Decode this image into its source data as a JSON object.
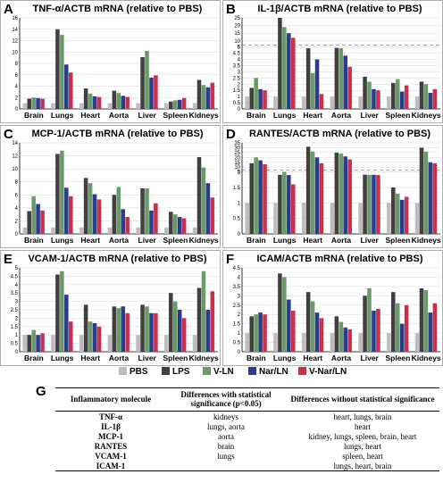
{
  "chart_data": [
    {
      "type": "bar",
      "panel": "A",
      "title": "TNF-α/ACTB mRNA (relative to PBS)",
      "categories": [
        "Brain",
        "Lungs",
        "Heart",
        "Aorta",
        "Liver",
        "Spleen",
        "Kidneys"
      ],
      "ylim": [
        0,
        16
      ],
      "yticks": [
        0,
        2,
        4,
        6,
        8,
        10,
        12,
        14,
        16
      ],
      "series": [
        {
          "name": "PBS",
          "values": [
            1.0,
            1.0,
            1.0,
            1.0,
            1.0,
            1.0,
            1.0
          ]
        },
        {
          "name": "LPS",
          "values": [
            1.8,
            14.0,
            3.6,
            3.2,
            9.1,
            1.3,
            5.1
          ]
        },
        {
          "name": "V-LN",
          "values": [
            2.0,
            13.0,
            2.7,
            2.8,
            10.2,
            1.5,
            4.2
          ]
        },
        {
          "name": "Nar/LN",
          "values": [
            1.9,
            7.8,
            2.2,
            2.3,
            5.5,
            1.6,
            3.8
          ]
        },
        {
          "name": "V-Nar/LN",
          "values": [
            1.8,
            6.4,
            2.1,
            2.1,
            5.9,
            1.9,
            4.6
          ]
        }
      ]
    },
    {
      "type": "bar",
      "panel": "B",
      "title": "IL-1β/ACTB mRNA (relative to PBS)",
      "categories": [
        "Brain",
        "Lungs",
        "Heart",
        "Aorta",
        "Liver",
        "Spleen",
        "Kidneys"
      ],
      "ylim": [
        0,
        25
      ],
      "yticks": [
        0,
        0.5,
        1,
        1.5,
        2,
        2.5,
        3,
        3.5,
        4,
        4.5,
        5,
        6,
        10,
        15,
        20,
        25
      ],
      "axis_break": [
        5,
        6
      ],
      "series": [
        {
          "name": "PBS",
          "values": [
            1.0,
            1.0,
            1.0,
            1.0,
            1.0,
            1.0,
            1.0
          ]
        },
        {
          "name": "LPS",
          "values": [
            1.7,
            25.0,
            4.9,
            5.4,
            2.6,
            2.1,
            2.2
          ]
        },
        {
          "name": "V-LN",
          "values": [
            2.5,
            19.0,
            2.9,
            5.2,
            2.2,
            2.4,
            2.0
          ]
        },
        {
          "name": "Nar/LN",
          "values": [
            1.6,
            15.0,
            4.0,
            4.3,
            1.6,
            1.4,
            1.3
          ]
        },
        {
          "name": "V-Nar/LN",
          "values": [
            1.5,
            12.0,
            1.2,
            3.4,
            1.5,
            1.9,
            1.6
          ]
        }
      ]
    },
    {
      "type": "bar",
      "panel": "C",
      "title": "MCP-1/ACTB mRNA (relative to PBS)",
      "categories": [
        "Brain",
        "Lungs",
        "Heart",
        "Aorta",
        "Liver",
        "Spleen",
        "Kidneys"
      ],
      "ylim": [
        0,
        14
      ],
      "yticks": [
        0,
        2,
        4,
        6,
        8,
        10,
        12,
        14
      ],
      "series": [
        {
          "name": "PBS",
          "values": [
            1.0,
            1.0,
            1.0,
            1.0,
            1.0,
            1.0,
            1.0
          ]
        },
        {
          "name": "LPS",
          "values": [
            3.5,
            12.3,
            8.6,
            6.0,
            7.0,
            3.4,
            11.8
          ]
        },
        {
          "name": "V-LN",
          "values": [
            5.8,
            12.8,
            7.8,
            7.2,
            7.0,
            3.0,
            10.2
          ]
        },
        {
          "name": "Nar/LN",
          "values": [
            4.6,
            7.1,
            6.1,
            3.8,
            3.6,
            2.6,
            7.8
          ]
        },
        {
          "name": "V-Nar/LN",
          "values": [
            3.6,
            5.8,
            5.3,
            2.6,
            4.7,
            2.4,
            5.6
          ]
        }
      ]
    },
    {
      "type": "bar",
      "panel": "D",
      "title": "RANTES/ACTB mRNA (relative to PBS)",
      "categories": [
        "Brain",
        "Lungs",
        "Heart",
        "Aorta",
        "Liver",
        "Spleen",
        "Kidneys"
      ],
      "ylim": [
        0,
        35
      ],
      "yticks": [
        0,
        0.5,
        1,
        1.5,
        2,
        5,
        10,
        15,
        20,
        25,
        30,
        35
      ],
      "axis_break": [
        2,
        5
      ],
      "series": [
        {
          "name": "PBS",
          "values": [
            1.0,
            1.0,
            1.0,
            1.0,
            1.0,
            1.0,
            1.0
          ]
        },
        {
          "name": "LPS",
          "values": [
            14.0,
            2.1,
            31.0,
            25.0,
            2.3,
            1.5,
            30.0
          ]
        },
        {
          "name": "V-LN",
          "values": [
            20.0,
            2.0,
            26.0,
            24.0,
            2.2,
            1.3,
            26.0
          ]
        },
        {
          "name": "Nar/LN",
          "values": [
            17.0,
            1.9,
            20.0,
            21.0,
            2.1,
            1.1,
            15.0
          ]
        },
        {
          "name": "V-Nar/LN",
          "values": [
            13.0,
            1.6,
            14.0,
            18.0,
            1.9,
            1.2,
            14.0
          ]
        }
      ]
    },
    {
      "type": "bar",
      "panel": "E",
      "title": "VCAM-1/ACTB mRNA (relative to PBS)",
      "categories": [
        "Brain",
        "Lungs",
        "Heart",
        "Aorta",
        "Liver",
        "Spleen",
        "Kidneys"
      ],
      "ylim": [
        0,
        5
      ],
      "yticks": [
        0,
        0.5,
        1,
        1.5,
        2,
        2.5,
        3,
        3.5,
        4,
        4.5,
        5
      ],
      "series": [
        {
          "name": "PBS",
          "values": [
            1.0,
            1.0,
            1.0,
            1.0,
            1.0,
            1.0,
            1.0
          ]
        },
        {
          "name": "LPS",
          "values": [
            1.0,
            4.6,
            2.8,
            2.7,
            2.8,
            3.5,
            3.8
          ]
        },
        {
          "name": "V-LN",
          "values": [
            1.3,
            4.8,
            1.8,
            2.6,
            2.7,
            3.0,
            4.8
          ]
        },
        {
          "name": "Nar/LN",
          "values": [
            1.0,
            3.4,
            1.7,
            2.7,
            2.3,
            2.5,
            2.5
          ]
        },
        {
          "name": "V-Nar/LN",
          "values": [
            1.1,
            1.8,
            1.5,
            2.3,
            2.3,
            2.0,
            3.6
          ]
        }
      ]
    },
    {
      "type": "bar",
      "panel": "F",
      "title": "ICAM/ACTB mRNA (relative to PBS)",
      "categories": [
        "Brain",
        "Lungs",
        "Heart",
        "Aorta",
        "Liver",
        "Spleen",
        "Kidneys"
      ],
      "ylim": [
        0,
        4.5
      ],
      "yticks": [
        0,
        0.5,
        1,
        1.5,
        2,
        2.5,
        3,
        3.5,
        4,
        4.5
      ],
      "series": [
        {
          "name": "PBS",
          "values": [
            1.0,
            1.0,
            1.0,
            1.0,
            1.0,
            1.0,
            1.0
          ]
        },
        {
          "name": "LPS",
          "values": [
            1.9,
            4.2,
            3.2,
            1.9,
            3.0,
            3.2,
            3.4
          ]
        },
        {
          "name": "V-LN",
          "values": [
            2.0,
            4.0,
            2.7,
            1.6,
            3.4,
            2.6,
            3.3
          ]
        },
        {
          "name": "Nar/LN",
          "values": [
            2.1,
            2.8,
            2.1,
            1.3,
            2.2,
            1.5,
            2.1
          ]
        },
        {
          "name": "V-Nar/LN",
          "values": [
            2.0,
            2.2,
            1.8,
            1.2,
            2.3,
            2.5,
            2.6
          ]
        }
      ]
    }
  ],
  "colors": [
    "#bdbdbd",
    "#404040",
    "#6a9a6a",
    "#2b3c8e",
    "#c9304a"
  ],
  "legend": [
    "PBS",
    "LPS",
    "V-LN",
    "Nar/LN",
    "V-Nar/LN"
  ],
  "table": {
    "letter": "G",
    "headers": [
      "Inflammatory molecule",
      "Differences with statistical significance (p<0.05)",
      "Differences without statistical significance"
    ],
    "rows": [
      [
        "TNF-α",
        "kidneys",
        "heart, lungs, brain"
      ],
      [
        "IL-1β",
        "lungs, aorta",
        "heart"
      ],
      [
        "MCP-1",
        "aorta",
        "kidney, lungs, spleen, brain, heart"
      ],
      [
        "RANTES",
        "brain",
        "lungs, heart"
      ],
      [
        "VCAM-1",
        "lungs",
        "spleen, heart"
      ],
      [
        "ICAM-1",
        "",
        "lungs, heart, brain"
      ]
    ]
  }
}
